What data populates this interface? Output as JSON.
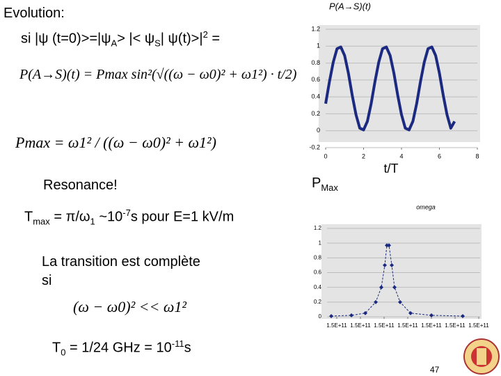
{
  "slide": {
    "heading": "Evolution:",
    "condition_line": [
      "si |ψ (t=0)>=|ψ",
      "A",
      "> |< ψ",
      "S",
      "| ψ(t)>|",
      "2",
      " ="
    ],
    "equation_prob": "P(A→S)(t) = Pmax sin²(√((ω − ω0)² + ω1²) · t/2)",
    "equation_pmax": "Pmax = ω1² / ((ω − ω0)² + ω1²)",
    "resonance": "Resonance!",
    "tmax_line": [
      "T",
      "max",
      " = π/ω",
      "1",
      " ~10",
      "-7",
      "s pour E=1 kV/m"
    ],
    "transition_lines": [
      "La transition est complète",
      "si"
    ],
    "transition_condition": "(ω − ω0)² << ω1²",
    "t0_line": [
      "T",
      "0",
      " = 1/24 GHz = 10",
      "-11",
      "s"
    ],
    "pmax_label": [
      "P",
      "Max"
    ],
    "page_number": "47"
  },
  "chart_data": [
    {
      "type": "line",
      "title": "P(A→S)(t)",
      "x_label": "t/T",
      "color": "#1b2a80",
      "x": [
        0,
        0.2,
        0.4,
        0.6,
        0.8,
        1,
        1.2,
        1.4,
        1.6,
        1.8,
        2,
        2.2,
        2.4,
        2.6,
        2.8,
        3,
        3.2,
        3.4,
        3.6,
        3.8,
        4,
        4.2,
        4.4,
        4.6,
        4.8,
        5,
        5.2,
        5.4,
        5.6,
        5.8,
        6,
        6.2,
        6.4,
        6.6,
        6.8
      ],
      "values": [
        0.32,
        0.58,
        0.81,
        0.97,
        0.99,
        0.89,
        0.68,
        0.42,
        0.19,
        0.03,
        0.01,
        0.11,
        0.32,
        0.58,
        0.81,
        0.97,
        0.99,
        0.89,
        0.68,
        0.42,
        0.19,
        0.03,
        0.01,
        0.11,
        0.32,
        0.58,
        0.81,
        0.97,
        0.99,
        0.89,
        0.68,
        0.42,
        0.19,
        0.03,
        0.11
      ],
      "xlim": [
        0,
        8
      ],
      "xticks": [
        0,
        2,
        4,
        6,
        8
      ],
      "ylim": [
        -0.2,
        1.2
      ],
      "yticks": [
        -0.2,
        0,
        0.2,
        0.4,
        0.6,
        0.8,
        1,
        1.2
      ],
      "grid": true
    },
    {
      "type": "scatter-line",
      "title": "omega",
      "color": "#1b2a80",
      "x": [
        149967650000,
        149976180000,
        149982060000,
        149986470000,
        149988820000,
        149990290000,
        149991180000,
        149992060000,
        149993240000,
        149994410000,
        149996760000,
        150001180000,
        150010000000,
        150023240000
      ],
      "values": [
        0.01,
        0.02,
        0.05,
        0.2,
        0.4,
        0.7,
        0.97,
        0.97,
        0.7,
        0.4,
        0.2,
        0.05,
        0.02,
        0.01
      ],
      "xlim": [
        149965880000,
        150030590000
      ],
      "xticks": [
        {
          "value": 149970000000,
          "label": "1.5E+11"
        },
        {
          "value": 149980000000,
          "label": "1.5E+11"
        },
        {
          "value": 149990000000,
          "label": "1.5E+11"
        },
        {
          "value": 150000000000,
          "label": "1.5E+11"
        },
        {
          "value": 150010000000,
          "label": "1.5E+11"
        },
        {
          "value": 150020000000,
          "label": "1.5E+11"
        },
        {
          "value": 150030000000,
          "label": "1.5E+11"
        }
      ],
      "ylim": [
        0,
        1.2
      ],
      "yticks": [
        0,
        0.2,
        0.4,
        0.6,
        0.8,
        1,
        1.2
      ],
      "grid": true
    }
  ]
}
